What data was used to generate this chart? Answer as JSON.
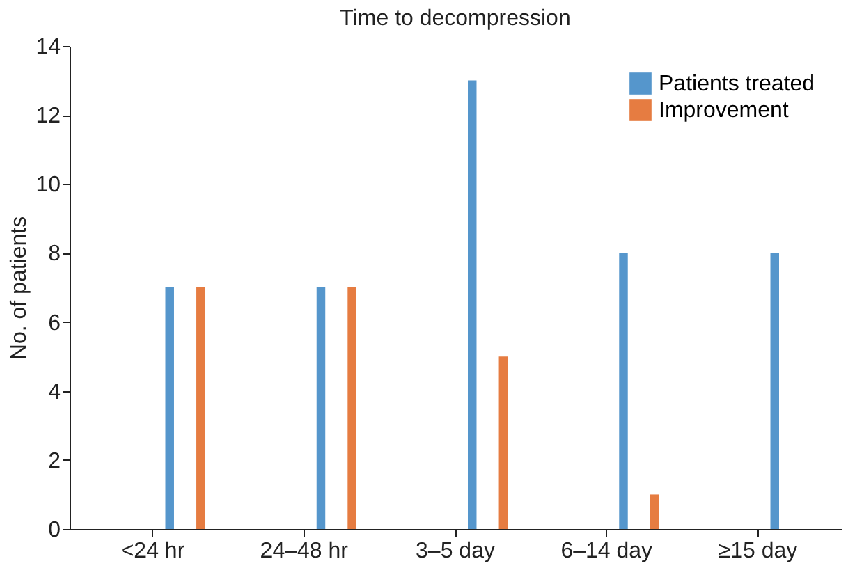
{
  "chart_data": {
    "type": "bar",
    "title": "Time to decompression",
    "ylabel": "No. of patients",
    "categories": [
      "<24 hr",
      "24–48 hr",
      "3–5 day",
      "6–14 day",
      "≥15 day"
    ],
    "series": [
      {
        "name": "Patients treated",
        "color": "#5596cc",
        "values": [
          7,
          7,
          13,
          8,
          8
        ]
      },
      {
        "name": "Improvement",
        "color": "#e67c41",
        "values": [
          7,
          7,
          5,
          1,
          0
        ]
      }
    ],
    "ylim": [
      0,
      14
    ],
    "yticks": [
      0,
      2,
      4,
      6,
      8,
      10,
      12,
      14
    ],
    "grid": false,
    "legend": "top right"
  }
}
